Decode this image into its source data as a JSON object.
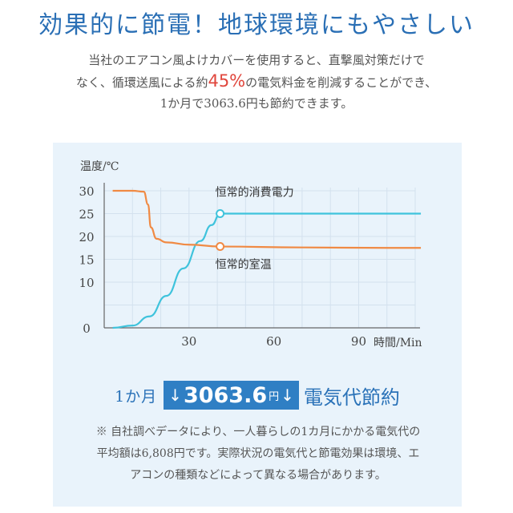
{
  "headline": "効果的に節電！地球環境にもやさしい",
  "intro": {
    "line1": "当社のエアコン風よけカバーを使用すると、直撃風対策だけで",
    "line2_before": "なく、循環送風による約",
    "line2_highlight": "45%",
    "line2_after": "の電気料金を削減することができ、",
    "line3": "1か月で3063.6円も節約できます。"
  },
  "colors": {
    "headline": "#2a6fb5",
    "highlight": "#e0463c",
    "panel_bg": "#e9f3fb",
    "power_line": "#3fc3dc",
    "temp_line": "#f08a44",
    "badge_bg": "#2f7fc4"
  },
  "chart_data": {
    "type": "line",
    "ylabel": "温度/℃",
    "xlabel": "時間/Min",
    "ylim": [
      0,
      30
    ],
    "xlim": [
      0,
      110
    ],
    "yticks": [
      "0",
      "10",
      "15",
      "20",
      "25",
      "30"
    ],
    "xticks": [
      "30",
      "60",
      "90"
    ],
    "grid": true,
    "series": [
      {
        "name": "恒常的消費電力",
        "color": "#3fc3dc",
        "points": [
          [
            3,
            0
          ],
          [
            10,
            0.5
          ],
          [
            16,
            2.5
          ],
          [
            22,
            7
          ],
          [
            28,
            13
          ],
          [
            34,
            19
          ],
          [
            38,
            22.5
          ],
          [
            41,
            25
          ],
          [
            48,
            25
          ],
          [
            70,
            25
          ],
          [
            100,
            25
          ],
          [
            112,
            25
          ]
        ],
        "marker": [
          41,
          25
        ]
      },
      {
        "name": "恒常的室温",
        "color": "#f08a44",
        "points": [
          [
            3,
            30
          ],
          [
            10,
            30
          ],
          [
            14,
            29.8
          ],
          [
            15.5,
            27
          ],
          [
            16.5,
            22
          ],
          [
            18.5,
            19.5
          ],
          [
            22,
            18.7
          ],
          [
            30,
            18.2
          ],
          [
            41,
            17.8
          ],
          [
            70,
            17.6
          ],
          [
            100,
            17.5
          ],
          [
            112,
            17.5
          ]
        ],
        "marker": [
          41,
          17.8
        ]
      }
    ]
  },
  "saving": {
    "prefix": "1か月",
    "down_arrow": "↓",
    "amount": "3063.6",
    "unit": "円",
    "suffix": "電気代節約"
  },
  "note": {
    "line1": "※ 自社調べデータにより、一人暮らしの1カ月にかかる電気代の",
    "line2": "平均額は6,808円です。実際状況の電気代と節電効果は環境、エ",
    "line3": "アコンの種類などによって異なる場合があります。"
  }
}
